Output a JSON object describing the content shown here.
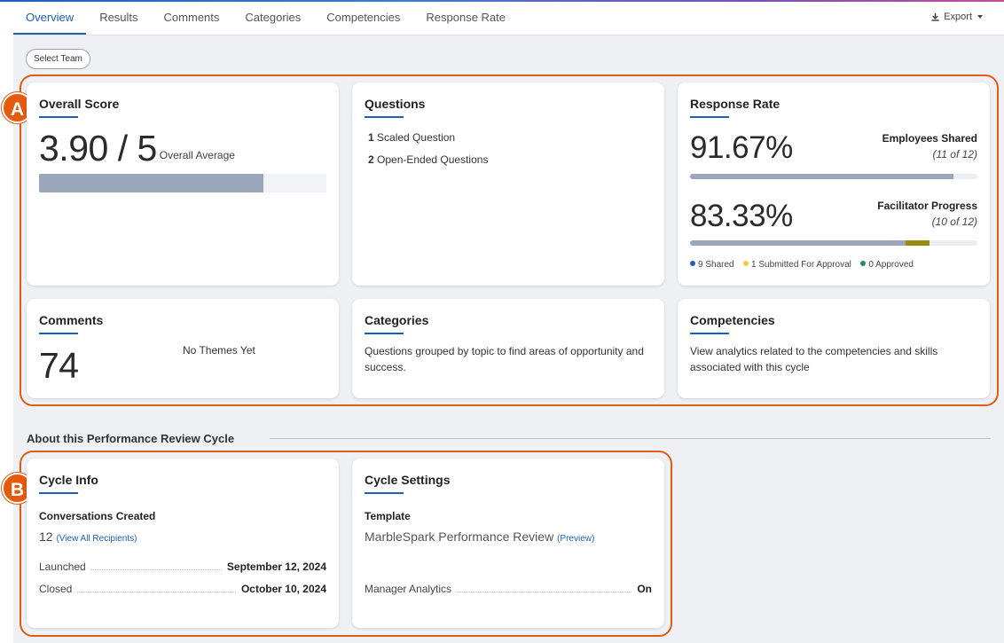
{
  "nav": {
    "tabs": [
      "Overview",
      "Results",
      "Comments",
      "Categories",
      "Competencies",
      "Response Rate"
    ],
    "export_label": "Export"
  },
  "select_team_label": "Select Team",
  "badges": {
    "a": "A",
    "b": "B"
  },
  "overall_score": {
    "title": "Overall Score",
    "score": "3.90 / 5",
    "caption": "Overall Average",
    "fraction": 0.78
  },
  "questions": {
    "title": "Questions",
    "items": [
      {
        "count": "1",
        "label": "Scaled Question"
      },
      {
        "count": "2",
        "label": "Open-Ended Questions"
      }
    ]
  },
  "response_rate": {
    "title": "Response Rate",
    "employees": {
      "percent": "91.67%",
      "label": "Employees Shared",
      "detail": "(11 of 12)",
      "fraction": 0.9167
    },
    "facilitator": {
      "percent": "83.33%",
      "label": "Facilitator Progress",
      "detail": "(10 of 12)",
      "shared_fraction": 0.75,
      "submitted_fraction": 0.0833
    },
    "legend": [
      {
        "label": "9 Shared",
        "color": "#1f5fb8"
      },
      {
        "label": "1 Submitted For Approval",
        "color": "#f2c94c"
      },
      {
        "label": "0 Approved",
        "color": "#2e8b57"
      }
    ],
    "colors": {
      "bar": "#9aa6ba",
      "submitted": "#9a8c0e"
    }
  },
  "comments": {
    "title": "Comments",
    "count": "74",
    "themes": "No Themes Yet"
  },
  "categories": {
    "title": "Categories",
    "description": "Questions grouped by topic to find areas of opportunity and success."
  },
  "competencies": {
    "title": "Competencies",
    "description": "View analytics related to the competencies and skills associated with this cycle"
  },
  "about_heading": "About this Performance Review Cycle",
  "cycle_info": {
    "title": "Cycle Info",
    "conversations_label": "Conversations Created",
    "conversations_count": "12",
    "view_all_link": "(View All Recipients)",
    "launched_label": "Launched",
    "launched_value": "September 12, 2024",
    "closed_label": "Closed",
    "closed_value": "October 10, 2024"
  },
  "cycle_settings": {
    "title": "Cycle Settings",
    "template_label": "Template",
    "template_name": "MarbleSpark Performance Review",
    "preview_link": "(Preview)",
    "manager_label": "Manager Analytics",
    "manager_value": "On"
  },
  "accent_colors": {
    "primary": "#1f5fb8",
    "highlight": "#e05b16"
  }
}
